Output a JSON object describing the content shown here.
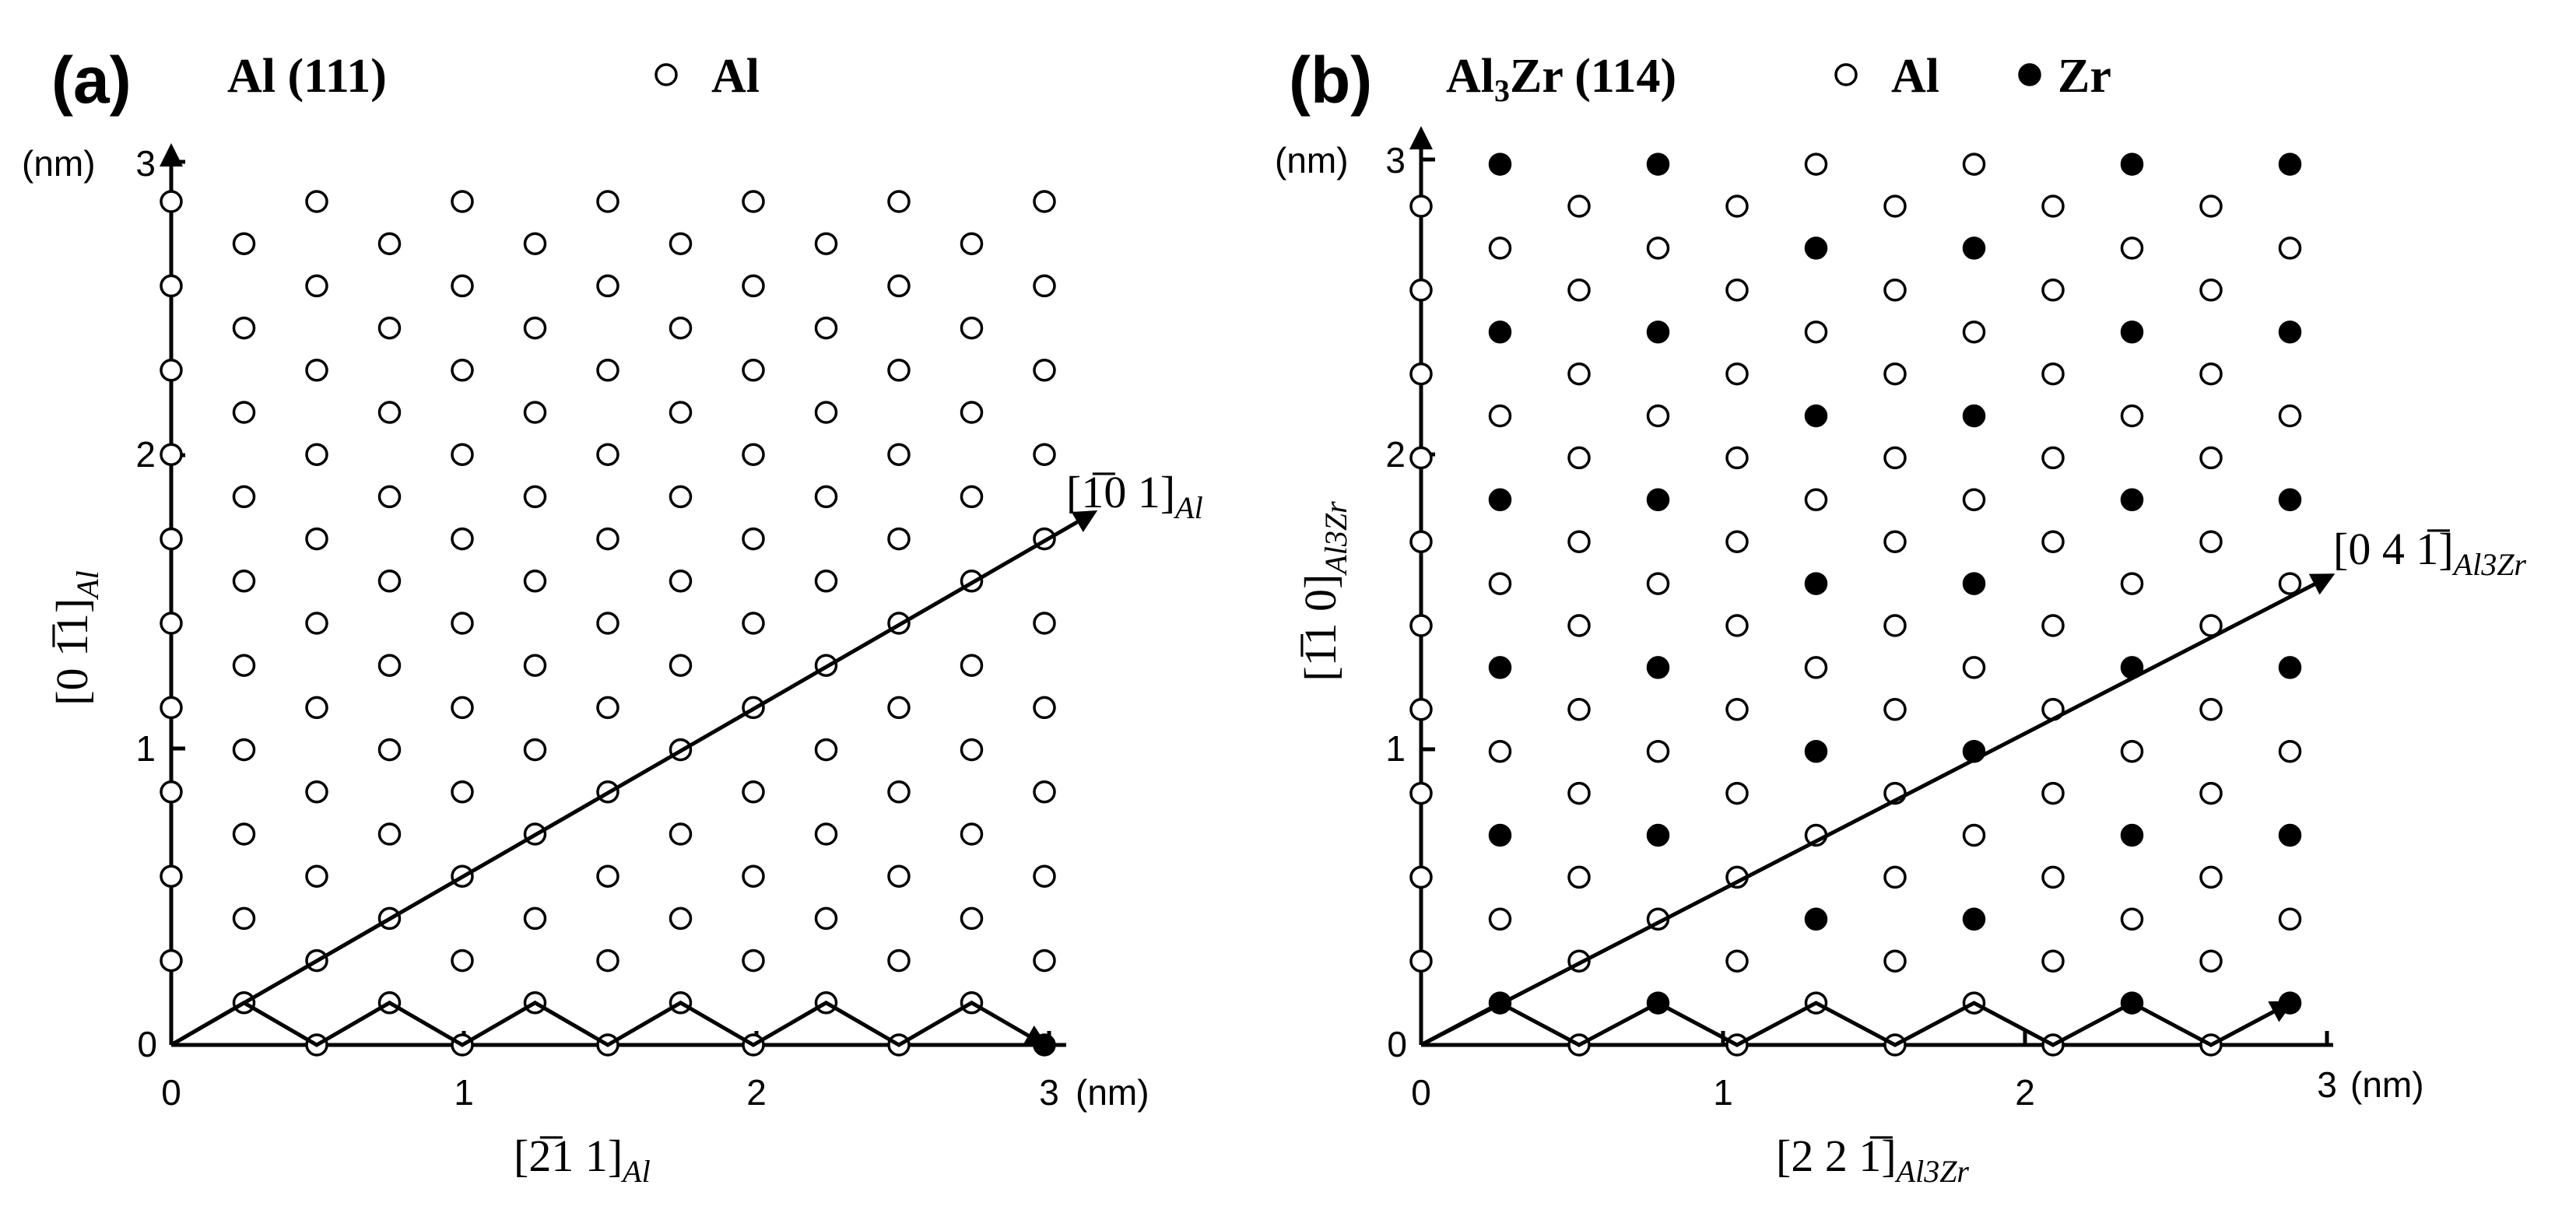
{
  "panels": [
    {
      "id": "a",
      "label": "(a)",
      "title": "Al (111)",
      "legend": [
        {
          "marker": "open-circle",
          "text": "Al"
        }
      ],
      "y_unit": "(nm)",
      "x_unit": "(nm)",
      "x_ticks": [
        "0",
        "1",
        "2",
        "3"
      ],
      "y_ticks": [
        "0",
        "1",
        "2",
        "3"
      ],
      "x_axis_label": {
        "main": "[2̅1 1]",
        "sub": "Al"
      },
      "y_axis_label": {
        "main": "[0 1̅1]",
        "sub": "Al"
      },
      "diagonal_label": {
        "main": "[1̅0 1]",
        "sub": "Al"
      }
    },
    {
      "id": "b",
      "label": "(b)",
      "title_main": "Al",
      "title_sub": "3",
      "title_rest": "Zr (114)",
      "legend": [
        {
          "marker": "open-circle",
          "text": "Al"
        },
        {
          "marker": "filled-circle",
          "text": "Zr"
        }
      ],
      "y_unit": "(nm)",
      "x_unit": "(nm)",
      "x_ticks": [
        "0",
        "1",
        "2",
        "3"
      ],
      "y_ticks": [
        "0",
        "1",
        "2",
        "3"
      ],
      "x_axis_label": {
        "main": "[2 2 1̅]",
        "sub": "Al3Zr"
      },
      "y_axis_label": {
        "main": "[1̅1 0]",
        "sub": "Al3Zr"
      },
      "diagonal_label": {
        "main": "[0 4 1̅]",
        "sub": "Al3Zr"
      }
    }
  ]
}
